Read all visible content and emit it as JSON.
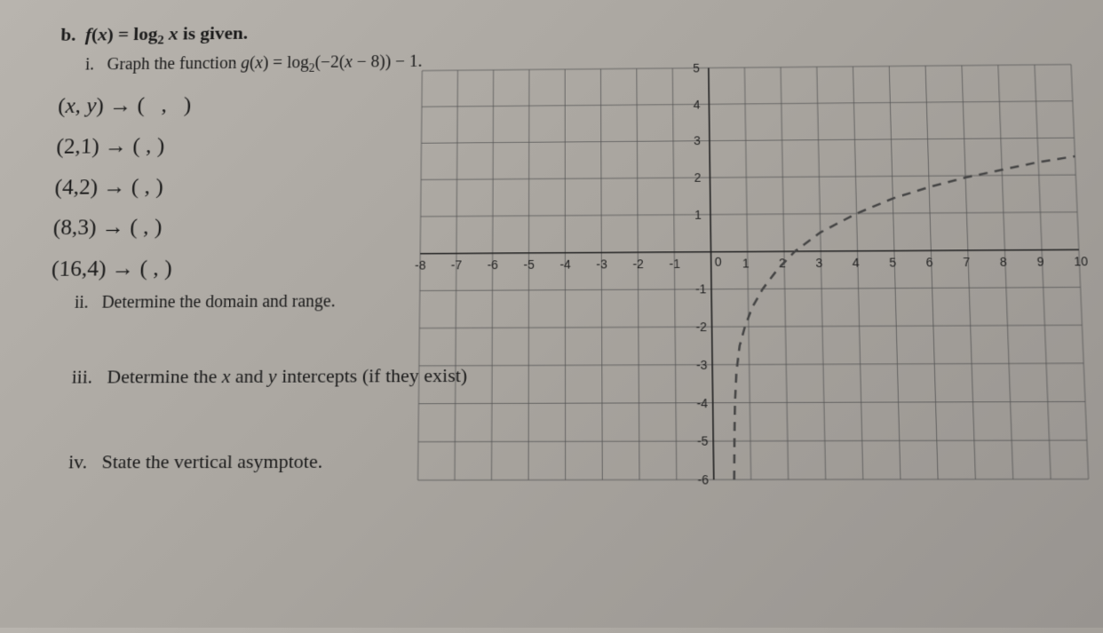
{
  "problem": {
    "label": "b.",
    "given": "f(x) = log₂ x is given.",
    "parts": {
      "i": {
        "label": "i.",
        "text": "Graph the function g(x) = log₂(−2(x − 8)) − 1."
      },
      "ii": {
        "label": "ii.",
        "text": "Determine the domain and range."
      },
      "iii": {
        "label": "iii.",
        "text": "Determine the x and y intercepts (if they exist)"
      },
      "iv": {
        "label": "iv.",
        "text": "State the vertical asymptote."
      }
    },
    "mappings": [
      {
        "from": "(x, y)",
        "to": "(    ,    )"
      },
      {
        "from": "(2,1)",
        "to": "(    ,    )"
      },
      {
        "from": "(4,2)",
        "to": "(    ,    )"
      },
      {
        "from": "(8,3)",
        "to": "(    ,    )"
      },
      {
        "from": "(16,4)",
        "to": "(    ,    )"
      }
    ]
  },
  "graph": {
    "type": "line",
    "xlim": [
      -8,
      10
    ],
    "ylim": [
      -6,
      5
    ],
    "xtick_step": 1,
    "ytick_step": 1,
    "grid_color": "#555555",
    "axis_color": "#222222",
    "background_color": "transparent",
    "curve": {
      "color": "#444444",
      "width": 2.5,
      "dash": "10 8",
      "points": [
        [
          0.55,
          -6
        ],
        [
          0.57,
          -5
        ],
        [
          0.6,
          -4
        ],
        [
          0.65,
          -3.2
        ],
        [
          0.75,
          -2.5
        ],
        [
          0.9,
          -2
        ],
        [
          1.1,
          -1.5
        ],
        [
          1.4,
          -1
        ],
        [
          1.8,
          -0.5
        ],
        [
          2.3,
          0
        ],
        [
          3,
          0.5
        ],
        [
          4,
          1
        ],
        [
          5,
          1.4
        ],
        [
          6,
          1.7
        ],
        [
          7,
          1.95
        ],
        [
          8,
          2.15
        ],
        [
          9,
          2.35
        ],
        [
          10,
          2.5
        ]
      ]
    }
  }
}
